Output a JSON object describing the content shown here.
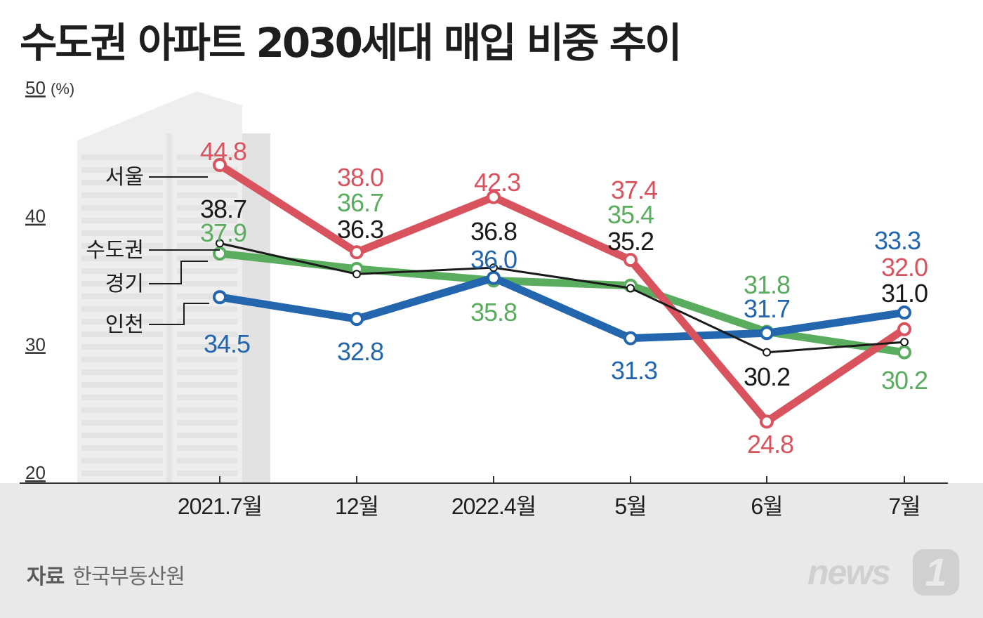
{
  "title": "수도권 아파트 2030세대 매입 비중 추이",
  "source": {
    "label": "자료",
    "name": "한국부동산원"
  },
  "logo": {
    "text": "news",
    "badge": "1"
  },
  "colors": {
    "서울": "#d9535e",
    "수도권": "#1a1a1a",
    "경기": "#5aac5e",
    "인천": "#2366ad"
  },
  "chart_data": {
    "type": "line",
    "categories": [
      "2021.7월",
      "12월",
      "2022.4월",
      "5월",
      "6월",
      "7월"
    ],
    "yunit": "(%)",
    "ylim": [
      20,
      50
    ],
    "yticks": [
      "20",
      "30",
      "40",
      "50"
    ],
    "grid": false,
    "legend": "left, line-labels",
    "series": [
      {
        "name": "서울",
        "values": [
          44.8,
          38.0,
          42.3,
          37.4,
          24.8,
          32.0
        ],
        "labels": [
          "44.8",
          "38.0",
          "42.3",
          "37.4",
          "24.8",
          "32.0"
        ]
      },
      {
        "name": "경기",
        "values": [
          37.9,
          36.7,
          35.8,
          35.4,
          31.8,
          30.2
        ],
        "labels": [
          "37.9",
          "36.7",
          "35.8",
          "35.4",
          "31.8",
          "30.2"
        ]
      },
      {
        "name": "인천",
        "values": [
          34.5,
          32.8,
          36.0,
          31.3,
          31.7,
          33.3
        ],
        "labels": [
          "34.5",
          "32.8",
          "36.0",
          "31.3",
          "31.7",
          "33.3"
        ]
      },
      {
        "name": "수도권",
        "values": [
          38.7,
          36.3,
          36.8,
          35.2,
          30.2,
          31.0
        ],
        "labels": [
          "38.7",
          "36.3",
          "36.8",
          "35.2",
          "30.2",
          "31.0"
        ]
      }
    ]
  }
}
